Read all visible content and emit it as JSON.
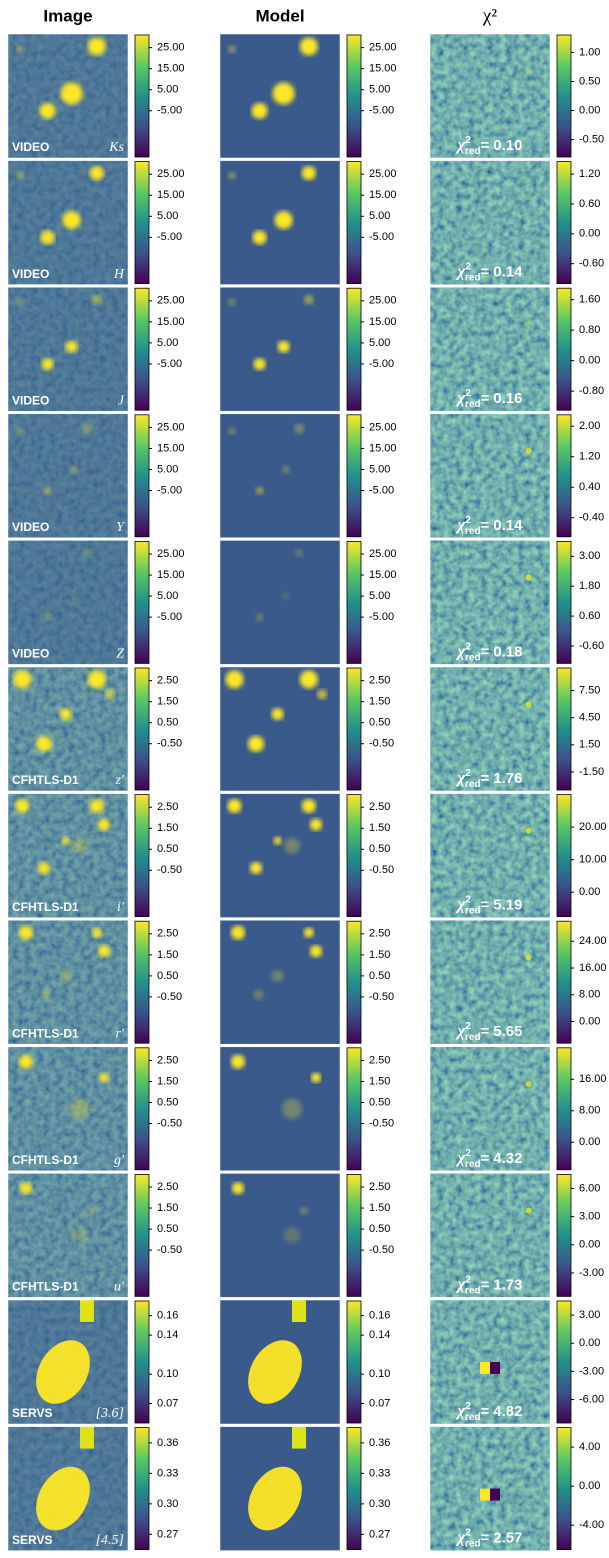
{
  "columns": [
    "Image",
    "Model",
    "χ²"
  ],
  "chi2_prefix": {
    "symbol": "χ",
    "sup": "2",
    "sub": "red",
    "eq": "="
  },
  "rows": [
    {
      "survey": "VIDEO",
      "band": "Ks",
      "chi2": "0.10",
      "colorbars": [
        {
          "lim": [
            -27,
            31
          ],
          "ticks": [
            {
              "value": 25,
              "label": "25.00"
            },
            {
              "value": 15,
              "label": "15.00"
            },
            {
              "value": 5,
              "label": "5.00"
            },
            {
              "value": -5,
              "label": "-5.00"
            }
          ]
        },
        {
          "lim": [
            -27,
            31
          ],
          "ticks": [
            {
              "value": 25,
              "label": "25.00"
            },
            {
              "value": 15,
              "label": "15.00"
            },
            {
              "value": 5,
              "label": "5.00"
            },
            {
              "value": -5,
              "label": "-5.00"
            }
          ]
        },
        {
          "lim": [
            -0.8,
            1.3
          ],
          "ticks": [
            {
              "value": 1,
              "label": "1.00"
            },
            {
              "value": 0.5,
              "label": "0.50"
            },
            {
              "value": 0,
              "label": "0.00"
            },
            {
              "value": -0.5,
              "label": "-0.50"
            }
          ]
        }
      ]
    },
    {
      "survey": "VIDEO",
      "band": "H",
      "chi2": "0.14",
      "colorbars": [
        {
          "lim": [
            -27,
            31
          ],
          "ticks": [
            {
              "value": 25,
              "label": "25.00"
            },
            {
              "value": 15,
              "label": "15.00"
            },
            {
              "value": 5,
              "label": "5.00"
            },
            {
              "value": -5,
              "label": "-5.00"
            }
          ]
        },
        {
          "lim": [
            -27,
            31
          ],
          "ticks": [
            {
              "value": 25,
              "label": "25.00"
            },
            {
              "value": 15,
              "label": "15.00"
            },
            {
              "value": 5,
              "label": "5.00"
            },
            {
              "value": -5,
              "label": "-5.00"
            }
          ]
        },
        {
          "lim": [
            -1.0,
            1.45
          ],
          "ticks": [
            {
              "value": 1.2,
              "label": "1.20"
            },
            {
              "value": 0.6,
              "label": "0.60"
            },
            {
              "value": 0,
              "label": "0.00"
            },
            {
              "value": -0.6,
              "label": "-0.60"
            }
          ]
        }
      ]
    },
    {
      "survey": "VIDEO",
      "band": "J",
      "chi2": "0.16",
      "colorbars": [
        {
          "lim": [
            -27,
            31
          ],
          "ticks": [
            {
              "value": 25,
              "label": "25.00"
            },
            {
              "value": 15,
              "label": "15.00"
            },
            {
              "value": 5,
              "label": "5.00"
            },
            {
              "value": -5,
              "label": "-5.00"
            }
          ]
        },
        {
          "lim": [
            -27,
            31
          ],
          "ticks": [
            {
              "value": 25,
              "label": "25.00"
            },
            {
              "value": 15,
              "label": "15.00"
            },
            {
              "value": 5,
              "label": "5.00"
            },
            {
              "value": -5,
              "label": "-5.00"
            }
          ]
        },
        {
          "lim": [
            -1.3,
            1.9
          ],
          "ticks": [
            {
              "value": 1.6,
              "label": "1.60"
            },
            {
              "value": 0.8,
              "label": "0.80"
            },
            {
              "value": 0,
              "label": "0.00"
            },
            {
              "value": -0.8,
              "label": "-0.80"
            }
          ]
        }
      ]
    },
    {
      "survey": "VIDEO",
      "band": "Y",
      "chi2": "0.14",
      "colorbars": [
        {
          "lim": [
            -27,
            31
          ],
          "ticks": [
            {
              "value": 25,
              "label": "25.00"
            },
            {
              "value": 15,
              "label": "15.00"
            },
            {
              "value": 5,
              "label": "5.00"
            },
            {
              "value": -5,
              "label": "-5.00"
            }
          ]
        },
        {
          "lim": [
            -27,
            31
          ],
          "ticks": [
            {
              "value": 25,
              "label": "25.00"
            },
            {
              "value": 15,
              "label": "15.00"
            },
            {
              "value": 5,
              "label": "5.00"
            },
            {
              "value": -5,
              "label": "-5.00"
            }
          ]
        },
        {
          "lim": [
            -0.9,
            2.3
          ],
          "ticks": [
            {
              "value": 2,
              "label": "2.00"
            },
            {
              "value": 1.2,
              "label": "1.20"
            },
            {
              "value": 0.4,
              "label": "0.40"
            },
            {
              "value": -0.4,
              "label": "-0.40"
            }
          ]
        }
      ]
    },
    {
      "survey": "VIDEO",
      "band": "Z",
      "chi2": "0.18",
      "colorbars": [
        {
          "lim": [
            -27,
            31
          ],
          "ticks": [
            {
              "value": 25,
              "label": "25.00"
            },
            {
              "value": 15,
              "label": "15.00"
            },
            {
              "value": 5,
              "label": "5.00"
            },
            {
              "value": -5,
              "label": "-5.00"
            }
          ]
        },
        {
          "lim": [
            -27,
            31
          ],
          "ticks": [
            {
              "value": 25,
              "label": "25.00"
            },
            {
              "value": 15,
              "label": "15.00"
            },
            {
              "value": 5,
              "label": "5.00"
            },
            {
              "value": -5,
              "label": "-5.00"
            }
          ]
        },
        {
          "lim": [
            -1.3,
            3.6
          ],
          "ticks": [
            {
              "value": 3,
              "label": "3.00"
            },
            {
              "value": 1.8,
              "label": "1.80"
            },
            {
              "value": 0.6,
              "label": "0.60"
            },
            {
              "value": -0.6,
              "label": "-0.60"
            }
          ]
        }
      ]
    },
    {
      "survey": "CFHTLS-D1",
      "band": "z′",
      "chi2": "1.76",
      "colorbars": [
        {
          "lim": [
            -2.7,
            3.1
          ],
          "ticks": [
            {
              "value": 2.5,
              "label": "2.50"
            },
            {
              "value": 1.5,
              "label": "1.50"
            },
            {
              "value": 0.5,
              "label": "0.50"
            },
            {
              "value": -0.5,
              "label": "-0.50"
            }
          ]
        },
        {
          "lim": [
            -2.7,
            3.1
          ],
          "ticks": [
            {
              "value": 2.5,
              "label": "2.50"
            },
            {
              "value": 1.5,
              "label": "1.50"
            },
            {
              "value": 0.5,
              "label": "0.50"
            },
            {
              "value": -0.5,
              "label": "-0.50"
            }
          ]
        },
        {
          "lim": [
            -3.5,
            10
          ],
          "ticks": [
            {
              "value": 7.5,
              "label": "7.50"
            },
            {
              "value": 4.5,
              "label": "4.50"
            },
            {
              "value": 1.5,
              "label": "1.50"
            },
            {
              "value": -1.5,
              "label": "-1.50"
            }
          ]
        }
      ]
    },
    {
      "survey": "CFHTLS-D1",
      "band": "i′",
      "chi2": "5.19",
      "colorbars": [
        {
          "lim": [
            -2.7,
            3.1
          ],
          "ticks": [
            {
              "value": 2.5,
              "label": "2.50"
            },
            {
              "value": 1.5,
              "label": "1.50"
            },
            {
              "value": 0.5,
              "label": "0.50"
            },
            {
              "value": -0.5,
              "label": "-0.50"
            }
          ]
        },
        {
          "lim": [
            -2.7,
            3.1
          ],
          "ticks": [
            {
              "value": 2.5,
              "label": "2.50"
            },
            {
              "value": 1.5,
              "label": "1.50"
            },
            {
              "value": 0.5,
              "label": "0.50"
            },
            {
              "value": -0.5,
              "label": "-0.50"
            }
          ]
        },
        {
          "lim": [
            -7.5,
            30
          ],
          "ticks": [
            {
              "value": 20,
              "label": "20.00"
            },
            {
              "value": 10,
              "label": "10.00"
            },
            {
              "value": 0,
              "label": "0.00"
            }
          ]
        }
      ]
    },
    {
      "survey": "CFHTLS-D1",
      "band": "r′",
      "chi2": "5.65",
      "colorbars": [
        {
          "lim": [
            -2.7,
            3.1
          ],
          "ticks": [
            {
              "value": 2.5,
              "label": "2.50"
            },
            {
              "value": 1.5,
              "label": "1.50"
            },
            {
              "value": 0.5,
              "label": "0.50"
            },
            {
              "value": -0.5,
              "label": "-0.50"
            }
          ]
        },
        {
          "lim": [
            -2.7,
            3.1
          ],
          "ticks": [
            {
              "value": 2.5,
              "label": "2.50"
            },
            {
              "value": 1.5,
              "label": "1.50"
            },
            {
              "value": 0.5,
              "label": "0.50"
            },
            {
              "value": -0.5,
              "label": "-0.50"
            }
          ]
        },
        {
          "lim": [
            -6.5,
            30
          ],
          "ticks": [
            {
              "value": 24,
              "label": "24.00"
            },
            {
              "value": 16,
              "label": "16.00"
            },
            {
              "value": 8,
              "label": "8.00"
            },
            {
              "value": 0,
              "label": "0.00"
            }
          ]
        }
      ]
    },
    {
      "survey": "CFHTLS-D1",
      "band": "g′",
      "chi2": "4.32",
      "colorbars": [
        {
          "lim": [
            -2.7,
            3.1
          ],
          "ticks": [
            {
              "value": 2.5,
              "label": "2.50"
            },
            {
              "value": 1.5,
              "label": "1.50"
            },
            {
              "value": 0.5,
              "label": "0.50"
            },
            {
              "value": -0.5,
              "label": "-0.50"
            }
          ]
        },
        {
          "lim": [
            -2.7,
            3.1
          ],
          "ticks": [
            {
              "value": 2.5,
              "label": "2.50"
            },
            {
              "value": 1.5,
              "label": "1.50"
            },
            {
              "value": 0.5,
              "label": "0.50"
            },
            {
              "value": -0.5,
              "label": "-0.50"
            }
          ]
        },
        {
          "lim": [
            -7,
            24
          ],
          "ticks": [
            {
              "value": 16,
              "label": "16.00"
            },
            {
              "value": 8,
              "label": "8.00"
            },
            {
              "value": 0,
              "label": "0.00"
            }
          ]
        }
      ]
    },
    {
      "survey": "CFHTLS-D1",
      "band": "u′",
      "chi2": "1.73",
      "colorbars": [
        {
          "lim": [
            -2.7,
            3.1
          ],
          "ticks": [
            {
              "value": 2.5,
              "label": "2.50"
            },
            {
              "value": 1.5,
              "label": "1.50"
            },
            {
              "value": 0.5,
              "label": "0.50"
            },
            {
              "value": -0.5,
              "label": "-0.50"
            }
          ]
        },
        {
          "lim": [
            -2.7,
            3.1
          ],
          "ticks": [
            {
              "value": 2.5,
              "label": "2.50"
            },
            {
              "value": 1.5,
              "label": "1.50"
            },
            {
              "value": 0.5,
              "label": "0.50"
            },
            {
              "value": -0.5,
              "label": "-0.50"
            }
          ]
        },
        {
          "lim": [
            -5.5,
            7.5
          ],
          "ticks": [
            {
              "value": 6,
              "label": "6.00"
            },
            {
              "value": 3,
              "label": "3.00"
            },
            {
              "value": 0,
              "label": "0.00"
            },
            {
              "value": -3,
              "label": "-3.00"
            }
          ]
        }
      ]
    },
    {
      "survey": "SERVS",
      "band": "[3.6]",
      "chi2": "4.82",
      "colorbars": [
        {
          "lim": [
            0.05,
            0.175
          ],
          "ticks": [
            {
              "value": 0.16,
              "label": "0.16"
            },
            {
              "value": 0.14,
              "label": "0.14"
            },
            {
              "value": 0.1,
              "label": "0.10"
            },
            {
              "value": 0.07,
              "label": "0.07"
            }
          ]
        },
        {
          "lim": [
            0.05,
            0.175
          ],
          "ticks": [
            {
              "value": 0.16,
              "label": "0.16"
            },
            {
              "value": 0.14,
              "label": "0.14"
            },
            {
              "value": 0.1,
              "label": "0.10"
            },
            {
              "value": 0.07,
              "label": "0.07"
            }
          ]
        },
        {
          "lim": [
            -8.5,
            4.5
          ],
          "ticks": [
            {
              "value": 3,
              "label": "3.00"
            },
            {
              "value": 0,
              "label": "0.00"
            },
            {
              "value": -3,
              "label": "-3.00"
            },
            {
              "value": -6,
              "label": "-6.00"
            }
          ]
        }
      ]
    },
    {
      "survey": "SERVS",
      "band": "[4.5]",
      "chi2": "2.57",
      "colorbars": [
        {
          "lim": [
            0.255,
            0.375
          ],
          "ticks": [
            {
              "value": 0.36,
              "label": "0.36"
            },
            {
              "value": 0.33,
              "label": "0.33"
            },
            {
              "value": 0.3,
              "label": "0.30"
            },
            {
              "value": 0.27,
              "label": "0.27"
            }
          ]
        },
        {
          "lim": [
            0.255,
            0.375
          ],
          "ticks": [
            {
              "value": 0.36,
              "label": "0.36"
            },
            {
              "value": 0.33,
              "label": "0.33"
            },
            {
              "value": 0.3,
              "label": "0.30"
            },
            {
              "value": 0.27,
              "label": "0.27"
            }
          ]
        },
        {
          "lim": [
            -6.5,
            6
          ],
          "ticks": [
            {
              "value": 4,
              "label": "4.00"
            },
            {
              "value": 0,
              "label": "0.00"
            },
            {
              "value": -4,
              "label": "-4.00"
            }
          ]
        }
      ]
    }
  ]
}
